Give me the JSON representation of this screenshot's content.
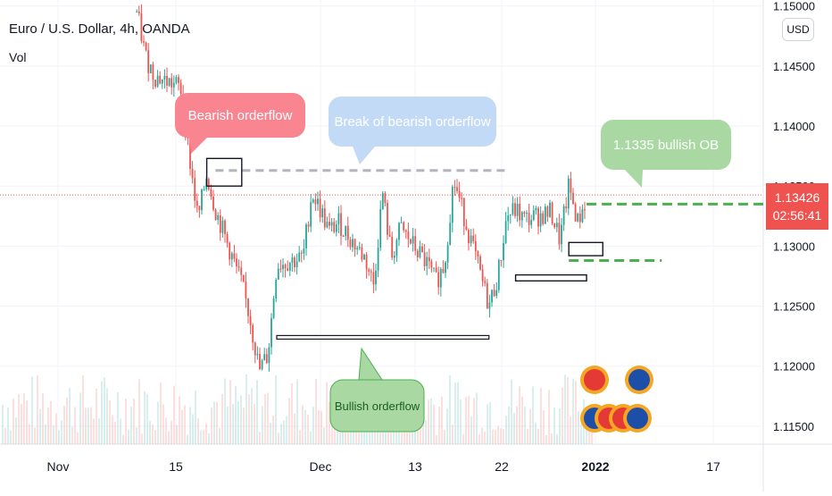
{
  "chart_data": {
    "type": "candlestick",
    "title": "Euro / U.S. Dollar, 4h, OANDA",
    "indicator": "Vol",
    "currency": "USD",
    "x_ticks": [
      "Nov",
      "15",
      "Dec",
      "13",
      "22",
      "2022",
      "17"
    ],
    "y_ticks": [
      "1.15000",
      "1.14500",
      "1.14000",
      "1.13500",
      "1.13000",
      "1.12500",
      "1.12000",
      "1.11500"
    ],
    "ylim": [
      1.1135,
      1.1505
    ],
    "last_price": "1.13426",
    "countdown": "02:56:41",
    "series_close_path": [
      [
        "Nov 10",
        1.1495
      ],
      [
        "Nov 11",
        1.1458
      ],
      [
        "Nov 12",
        1.1442
      ],
      [
        "Nov 15",
        1.1432
      ],
      [
        "Nov 16",
        1.1375
      ],
      [
        "Nov 17",
        1.1322
      ],
      [
        "Nov 18",
        1.136
      ],
      [
        "Nov 19",
        1.133
      ],
      [
        "Nov 22",
        1.1268
      ],
      [
        "Nov 23",
        1.1238
      ],
      [
        "Nov 24",
        1.1196
      ],
      [
        "Nov 25",
        1.121
      ],
      [
        "Nov 26",
        1.1285
      ],
      [
        "Nov 29",
        1.129
      ],
      [
        "Nov 30",
        1.1345
      ],
      [
        "Dec 1",
        1.133
      ],
      [
        "Dec 2",
        1.1312
      ],
      [
        "Dec 3",
        1.132
      ],
      [
        "Dec 6",
        1.129
      ],
      [
        "Dec 7",
        1.1268
      ],
      [
        "Dec 8",
        1.1345
      ],
      [
        "Dec 9",
        1.129
      ],
      [
        "Dec 10",
        1.1315
      ],
      [
        "Dec 13",
        1.1285
      ],
      [
        "Dec 14",
        1.127
      ],
      [
        "Dec 15",
        1.1285
      ],
      [
        "Dec 16",
        1.1355
      ],
      [
        "Dec 17",
        1.133
      ],
      [
        "Dec 20",
        1.125
      ],
      [
        "Dec 21",
        1.1275
      ],
      [
        "Dec 22",
        1.1325
      ],
      [
        "Dec 23",
        1.133
      ],
      [
        "Dec 24",
        1.1322
      ],
      [
        "Dec 27",
        1.1328
      ],
      [
        "Dec 28",
        1.1305
      ],
      [
        "Dec 29",
        1.135
      ],
      [
        "Dec 30",
        1.132
      ],
      [
        "Dec 31",
        1.134
      ]
    ],
    "horizontal_levels": [
      {
        "style": "dashed-gray",
        "price": 1.1363,
        "from": "Nov 19",
        "to": "Dec 22"
      },
      {
        "style": "dashed-green",
        "price": 1.1335,
        "from": "Dec 31",
        "to": "right-edge"
      },
      {
        "style": "dashed-green",
        "price": 1.1288,
        "from": "Dec 29",
        "to": "Jan 10"
      },
      {
        "style": "black-line",
        "price": 1.1224,
        "from": "Nov 26",
        "to": "Dec 20"
      }
    ],
    "zones": [
      {
        "name": "bearish-ob",
        "price_low": 1.135,
        "price_high": 1.1373,
        "from": "Nov 18",
        "to": "Nov 22"
      },
      {
        "name": "bullish-ob-upper",
        "price_low": 1.1292,
        "price_high": 1.1303,
        "from": "Dec 29",
        "to": "Jan 2"
      },
      {
        "name": "bullish-ob-lower",
        "price_low": 1.1271,
        "price_high": 1.1276,
        "from": "Dec 23",
        "to": "Dec 31"
      }
    ],
    "annotations": [
      {
        "text": "Bearish orderflow",
        "color": "#f8858f"
      },
      {
        "text": "Break of bearish orderflow",
        "color": "#c3daf7"
      },
      {
        "text": "1.1335 bullish OB",
        "color": "#a9d8a3"
      },
      {
        "text": "Bullish orderflow",
        "color": "#a9d8a3"
      }
    ]
  }
}
